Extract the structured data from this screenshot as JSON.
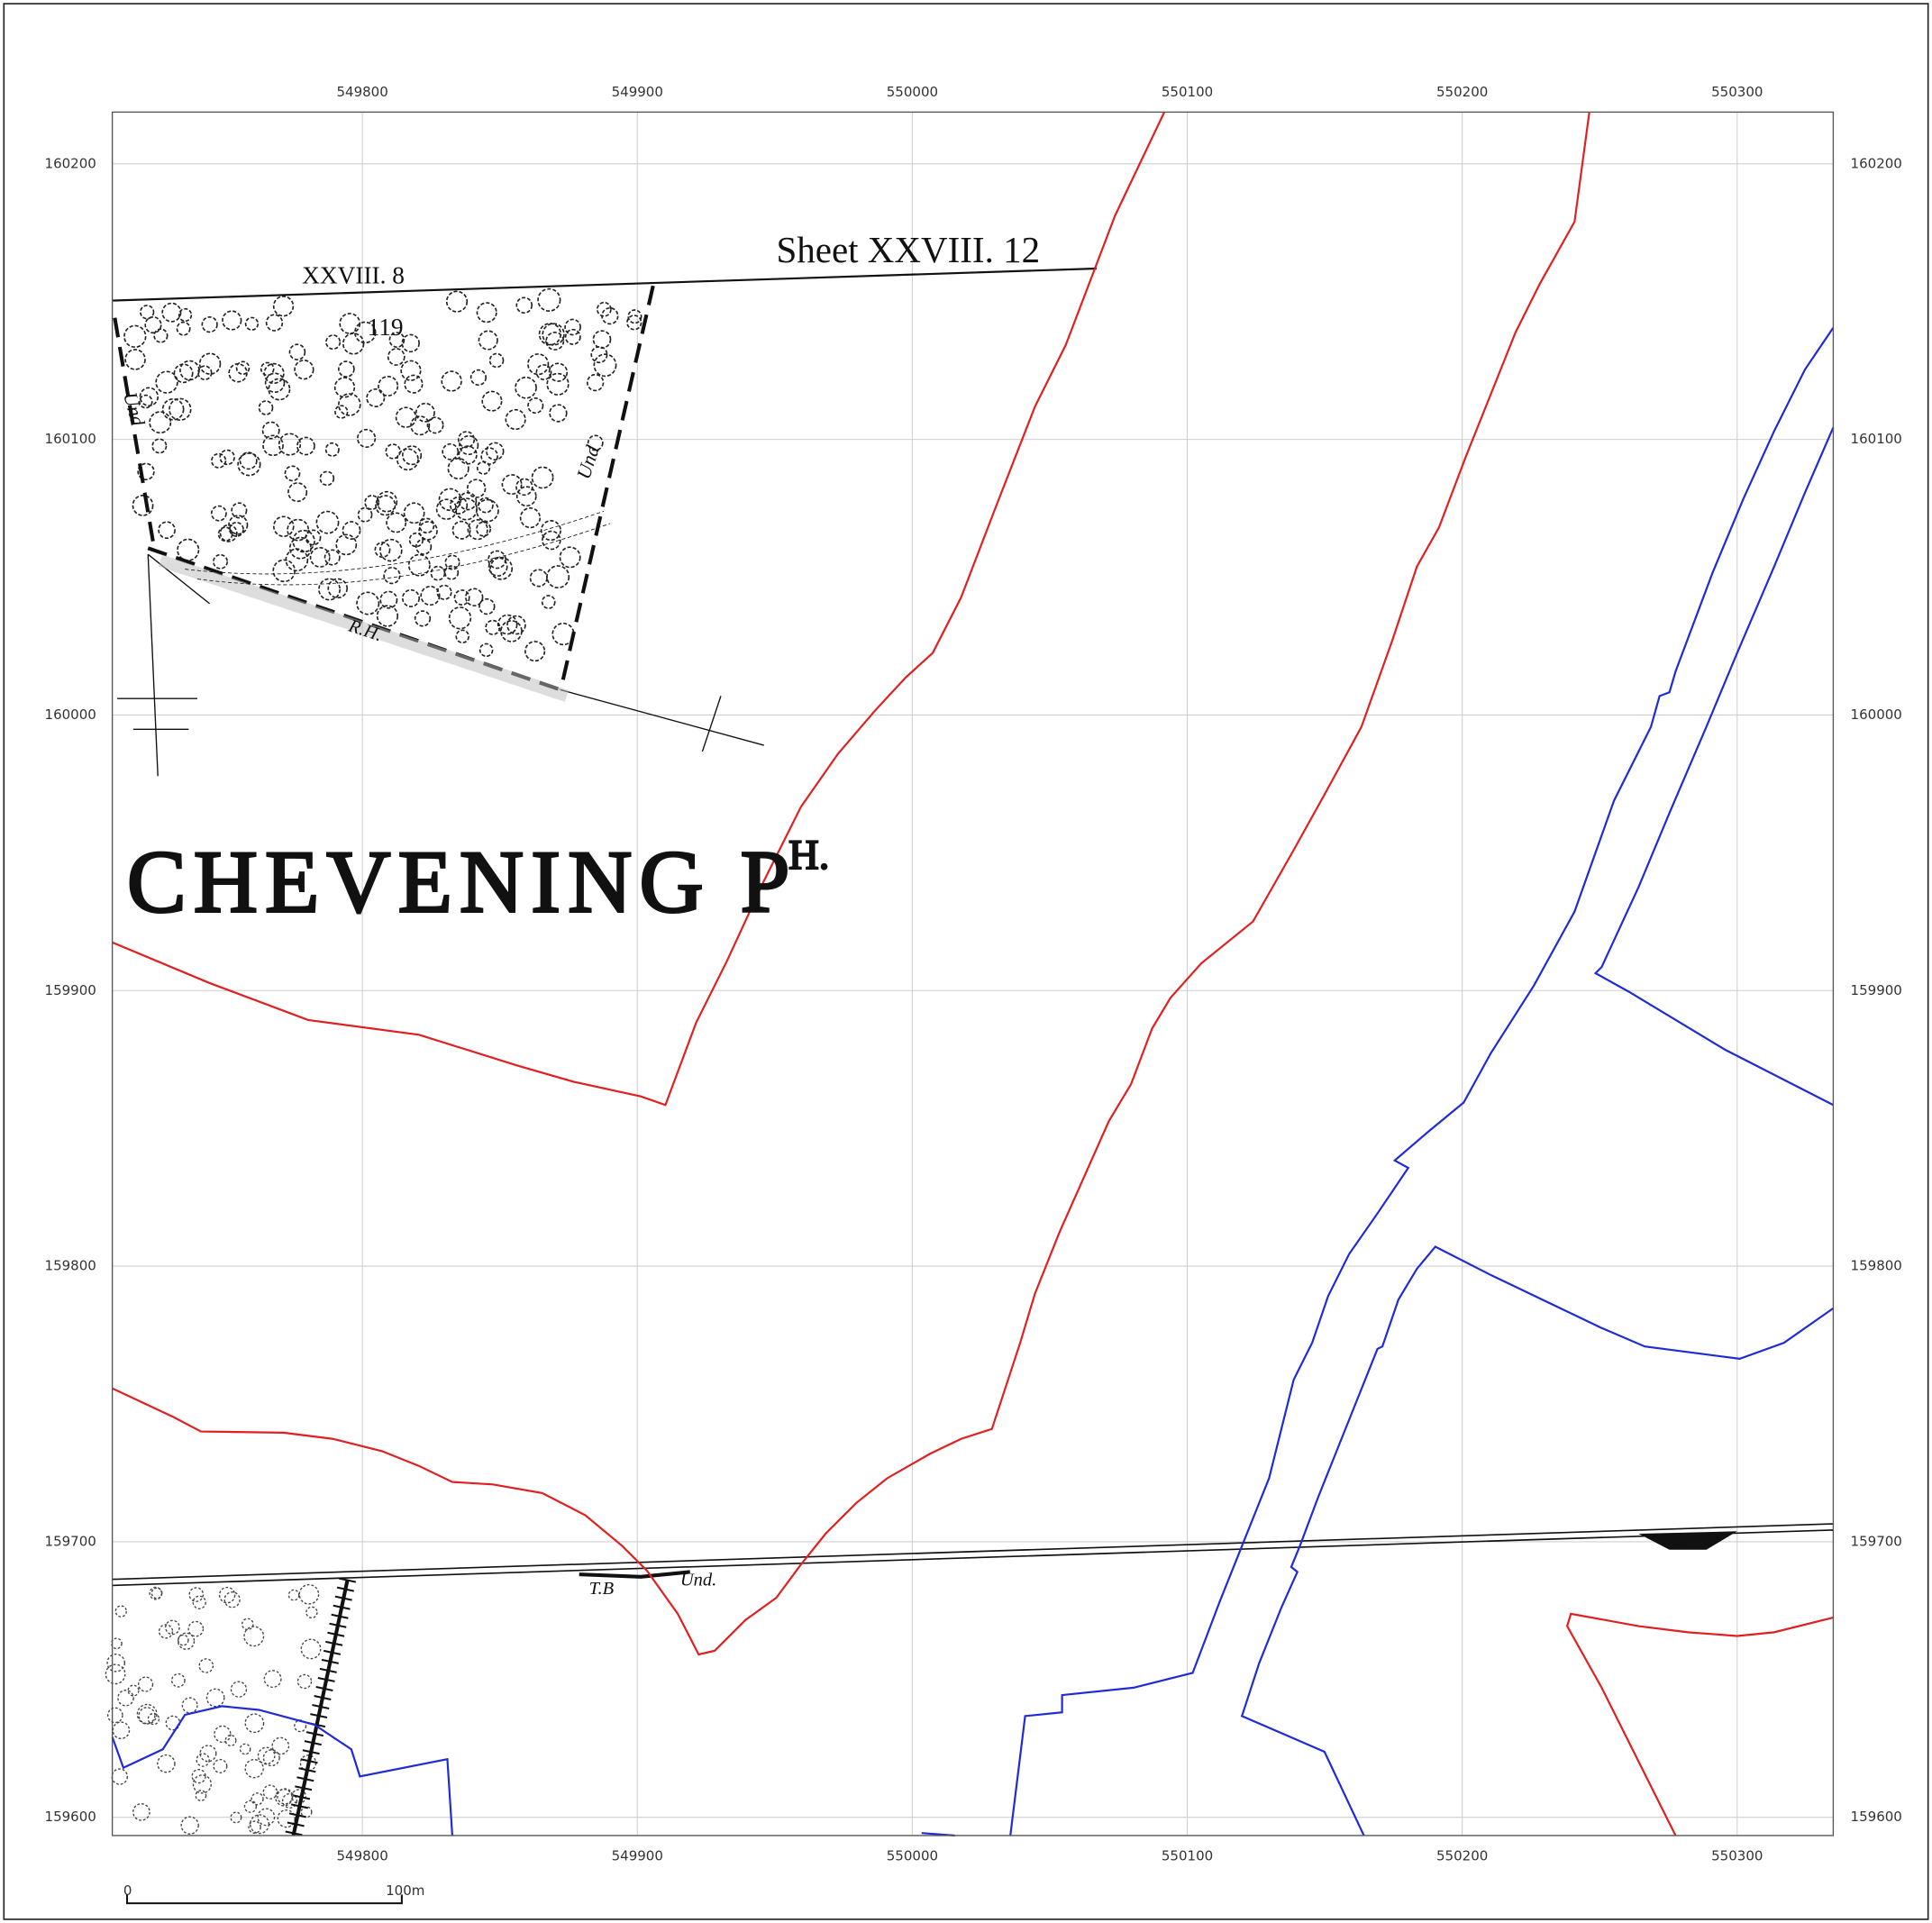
{
  "map": {
    "eastings": [
      549800,
      549900,
      550000,
      550100,
      550200,
      550300
    ],
    "northings": [
      160200,
      160100,
      160000,
      159900,
      159800,
      159700,
      159600
    ],
    "labels": {
      "sheet": "Sheet XXVIII. 12",
      "sheet_adjacent": "XXVIII. 8",
      "parcel": "119",
      "parish": "CHEVENING P",
      "parish_suffix": "H.",
      "und_left": "Und",
      "und_right": "Und",
      "rh": "R.H.",
      "tb": "T.B",
      "und_bottom": "Und.",
      "fe": "F.E."
    },
    "scale_bar": {
      "start": "0",
      "end": "100m"
    }
  }
}
